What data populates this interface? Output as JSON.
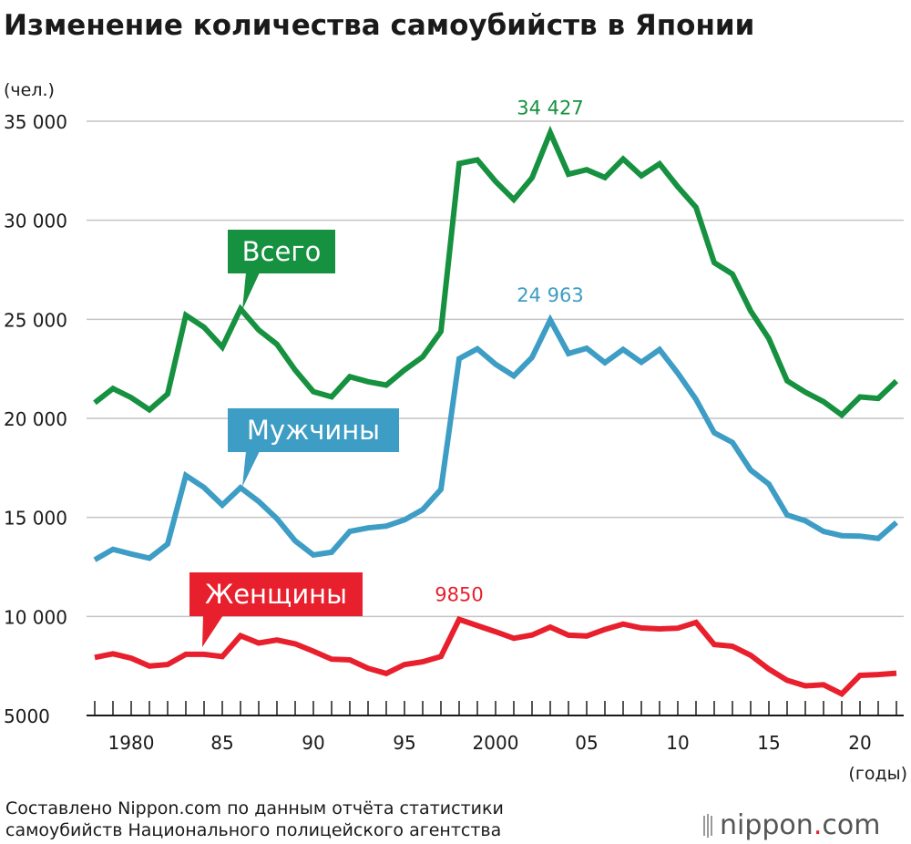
{
  "title": "Изменение количества самоубийств в Японии",
  "source_line1": "Составлено Nippon.com по данным отчёта статистики",
  "source_line2": "самоубийств Национального полицейского агентства",
  "logo": {
    "prefix": "nippon",
    "dot": ".",
    "suffix": "com"
  },
  "chart_data": {
    "type": "line",
    "title": "Изменение количества самоубийств в Японии",
    "ylabel": "(чел.)",
    "xlabel": "(годы)",
    "ylim": [
      5000,
      35000
    ],
    "yticks": [
      5000,
      10000,
      15000,
      20000,
      25000,
      30000,
      35000
    ],
    "ytick_labels": [
      "5000",
      "10 000",
      "15 000",
      "20 000",
      "25 000",
      "30 000",
      "35 000"
    ],
    "xtick_labels": [
      {
        "year": 1980,
        "label": "1980"
      },
      {
        "year": 1985,
        "label": "85"
      },
      {
        "year": 1990,
        "label": "90"
      },
      {
        "year": 1995,
        "label": "95"
      },
      {
        "year": 2000,
        "label": "2000"
      },
      {
        "year": 2005,
        "label": "05"
      },
      {
        "year": 2010,
        "label": "10"
      },
      {
        "year": 2015,
        "label": "15"
      },
      {
        "year": 2020,
        "label": "20"
      }
    ],
    "x": [
      1978,
      1979,
      1980,
      1981,
      1982,
      1983,
      1984,
      1985,
      1986,
      1987,
      1988,
      1989,
      1990,
      1991,
      1992,
      1993,
      1994,
      1995,
      1996,
      1997,
      1998,
      1999,
      2000,
      2001,
      2002,
      2003,
      2004,
      2005,
      2006,
      2007,
      2008,
      2009,
      2010,
      2011,
      2012,
      2013,
      2014,
      2015,
      2016,
      2017,
      2018,
      2019,
      2020,
      2021,
      2022
    ],
    "series": [
      {
        "name": "Всего",
        "color": "#16913f",
        "values": [
          20788,
          21503,
          21048,
          20434,
          21228,
          25202,
          24596,
          23599,
          25524,
          24460,
          23742,
          22436,
          21346,
          21084,
          22104,
          21851,
          21679,
          22445,
          23104,
          24391,
          32863,
          33048,
          31957,
          31042,
          32143,
          34427,
          32325,
          32552,
          32155,
          33093,
          32249,
          32845,
          31690,
          30651,
          27858,
          27283,
          25427,
          24025,
          21897,
          21321,
          20840,
          20169,
          21081,
          21007,
          21881
        ],
        "peak": {
          "year": 2003,
          "value": 34427,
          "label": "34 427"
        }
      },
      {
        "name": "Мужчины",
        "color": "#3d9dc4",
        "values": [
          12859,
          13386,
          13155,
          12942,
          13654,
          17116,
          16508,
          15624,
          16499,
          15802,
          14934,
          13818,
          13102,
          13242,
          14296,
          14468,
          14560,
          14874,
          15393,
          16416,
          23013,
          23512,
          22727,
          22144,
          23080,
          24963,
          23272,
          23540,
          22813,
          23478,
          22831,
          23472,
          22283,
          20955,
          19273,
          18787,
          17386,
          16681,
          15121,
          14826,
          14290,
          14078,
          14055,
          13939,
          14746
        ],
        "peak": {
          "year": 2003,
          "value": 24963,
          "label": "24 963"
        }
      },
      {
        "name": "Женщины",
        "color": "#e8202d",
        "values": [
          7929,
          8117,
          7893,
          7492,
          7574,
          8086,
          8088,
          7975,
          9025,
          8658,
          8808,
          8618,
          8244,
          7842,
          7808,
          7383,
          7119,
          7571,
          7711,
          7975,
          9850,
          9536,
          9230,
          8898,
          9063,
          9464,
          9053,
          9012,
          9342,
          9615,
          9418,
          9373,
          9407,
          9696,
          8585,
          8496,
          8041,
          7344,
          6776,
          6495,
          6550,
          6091,
          7026,
          7068,
          7135
        ],
        "peak": {
          "year": 1998,
          "value": 9850,
          "label": "9850"
        }
      }
    ]
  }
}
